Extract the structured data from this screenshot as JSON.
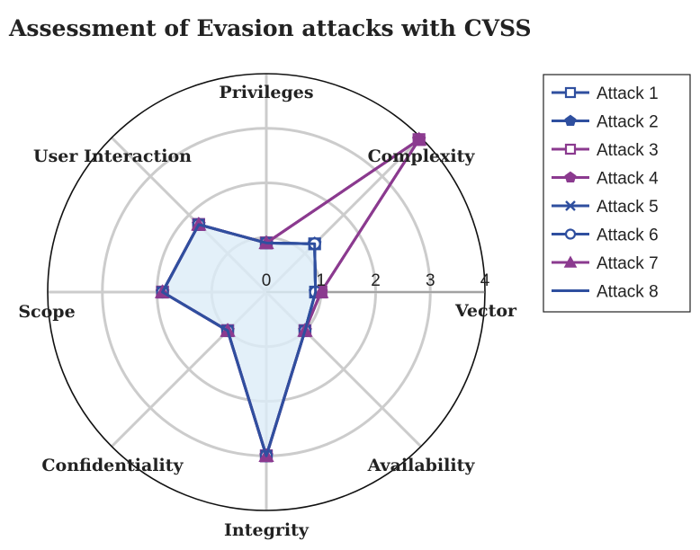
{
  "chart_data": {
    "type": "radar",
    "title": "Assessment of Evasion attacks with CVSS",
    "axes": [
      "Vector",
      "Complexity",
      "Privileges",
      "User Interaction",
      "Scope",
      "Confidentiality",
      "Integrity",
      "Availability"
    ],
    "rlim": [
      0,
      4
    ],
    "ticks": [
      "0",
      "1",
      "2",
      "3",
      "4"
    ],
    "grid": true,
    "legend_position": "right",
    "series": [
      {
        "name": "Attack 1",
        "color": "#2f4f9f",
        "marker": "square-open",
        "values": [
          0.9,
          1.25,
          0.9,
          1.75,
          1.9,
          1.0,
          3.0,
          1.0
        ]
      },
      {
        "name": "Attack 2",
        "color": "#2f4f9f",
        "marker": "pentagon",
        "values": [
          0.9,
          1.25,
          0.9,
          1.75,
          1.9,
          1.0,
          3.0,
          1.0
        ]
      },
      {
        "name": "Attack 3",
        "color": "#8b3a8f",
        "marker": "square-open",
        "values": [
          1.0,
          3.95,
          0.9,
          1.75,
          1.9,
          1.0,
          3.0,
          1.0
        ]
      },
      {
        "name": "Attack 4",
        "color": "#8b3a8f",
        "marker": "pentagon",
        "values": [
          1.0,
          3.95,
          0.9,
          1.75,
          1.9,
          1.0,
          3.0,
          1.0
        ]
      },
      {
        "name": "Attack 5",
        "color": "#2f4f9f",
        "marker": "x",
        "values": [
          0.9,
          1.25,
          0.9,
          1.75,
          1.9,
          1.0,
          3.0,
          1.0
        ]
      },
      {
        "name": "Attack 6",
        "color": "#2f4f9f",
        "marker": "circle-open",
        "values": [
          0.9,
          1.25,
          0.9,
          1.75,
          1.9,
          1.0,
          3.0,
          1.0
        ]
      },
      {
        "name": "Attack 7",
        "color": "#8b3a8f",
        "marker": "triangle",
        "values": [
          1.0,
          3.95,
          0.9,
          1.75,
          1.9,
          1.0,
          3.0,
          1.0
        ]
      },
      {
        "name": "Attack 8",
        "color": "#2f4f9f",
        "marker": "none",
        "values": [
          0.9,
          1.25,
          0.9,
          1.75,
          1.9,
          1.0,
          3.0,
          1.0
        ]
      }
    ],
    "fill_color": "#dcecf8"
  }
}
